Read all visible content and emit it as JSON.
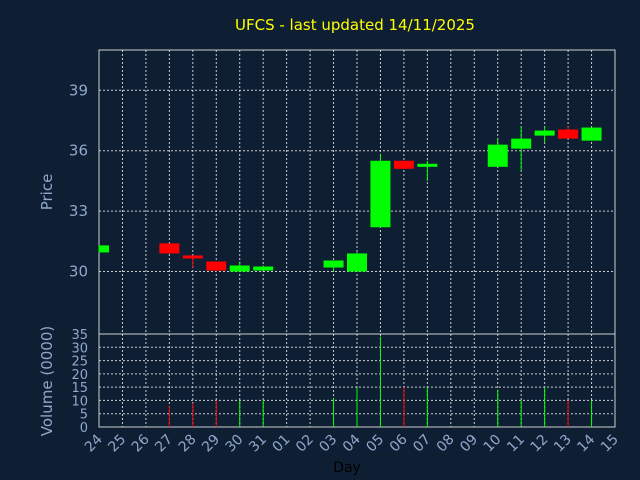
{
  "chart_data": {
    "type": "candlestick",
    "title": "UFCS - last updated 14/11/2025",
    "xlabel": "Day",
    "price_panel": {
      "ylabel": "Price",
      "yticks": [
        "30",
        "33",
        "36",
        "39"
      ],
      "ylim": [
        26.9,
        41.0
      ]
    },
    "volume_panel": {
      "ylabel": "Volume (0000)",
      "yticks": [
        "0",
        "5",
        "10",
        "15",
        "20",
        "25",
        "30",
        "35"
      ],
      "ylim": [
        0,
        35
      ]
    },
    "x_tick_labels": [
      "24",
      "25",
      "26",
      "27",
      "28",
      "29",
      "30",
      "31",
      "01",
      "02",
      "03",
      "04",
      "05",
      "06",
      "07",
      "08",
      "09",
      "10",
      "11",
      "12",
      "13",
      "14",
      "15"
    ],
    "candles": [
      {
        "day": "24",
        "open": 30.95,
        "high": 31.3,
        "low": 30.95,
        "close": 31.3,
        "volume": 0
      },
      {
        "day": "27",
        "open": 31.4,
        "high": 31.4,
        "low": 30.9,
        "close": 30.9,
        "volume": 8
      },
      {
        "day": "28",
        "open": 30.8,
        "high": 30.8,
        "low": 30.2,
        "close": 30.65,
        "volume": 9
      },
      {
        "day": "29",
        "open": 30.5,
        "high": 30.5,
        "low": 30.0,
        "close": 30.05,
        "volume": 10
      },
      {
        "day": "30",
        "open": 30.0,
        "high": 30.5,
        "low": 30.0,
        "close": 30.3,
        "volume": 10
      },
      {
        "day": "31",
        "open": 30.05,
        "high": 30.3,
        "low": 30.05,
        "close": 30.25,
        "volume": 10
      },
      {
        "day": "03",
        "open": 30.2,
        "high": 30.55,
        "low": 30.0,
        "close": 30.55,
        "volume": 11
      },
      {
        "day": "04",
        "open": 30.0,
        "high": 30.95,
        "low": 30.0,
        "close": 30.9,
        "volume": 15
      },
      {
        "day": "05",
        "open": 32.2,
        "high": 35.8,
        "low": 32.2,
        "close": 35.5,
        "volume": 34
      },
      {
        "day": "06",
        "open": 35.5,
        "high": 35.5,
        "low": 35.1,
        "close": 35.1,
        "volume": 15
      },
      {
        "day": "07",
        "open": 35.2,
        "high": 35.5,
        "low": 34.5,
        "close": 35.35,
        "volume": 15
      },
      {
        "day": "10",
        "open": 35.2,
        "high": 36.6,
        "low": 35.2,
        "close": 36.3,
        "volume": 14
      },
      {
        "day": "11",
        "open": 36.1,
        "high": 37.2,
        "low": 35.0,
        "close": 36.6,
        "volume": 10
      },
      {
        "day": "12",
        "open": 36.75,
        "high": 37.2,
        "low": 36.4,
        "close": 37.0,
        "volume": 15
      },
      {
        "day": "13",
        "open": 37.05,
        "high": 37.2,
        "low": 36.6,
        "close": 36.6,
        "volume": 10
      },
      {
        "day": "14",
        "open": 36.5,
        "high": 37.15,
        "low": 36.5,
        "close": 37.15,
        "volume": 10
      }
    ],
    "colors": {
      "background": "#0f1f33",
      "up": "#00ff00",
      "down": "#ff0000",
      "grid": "#cccccc",
      "axis_text": "#8fa8cc",
      "title": "#ffff00"
    }
  }
}
